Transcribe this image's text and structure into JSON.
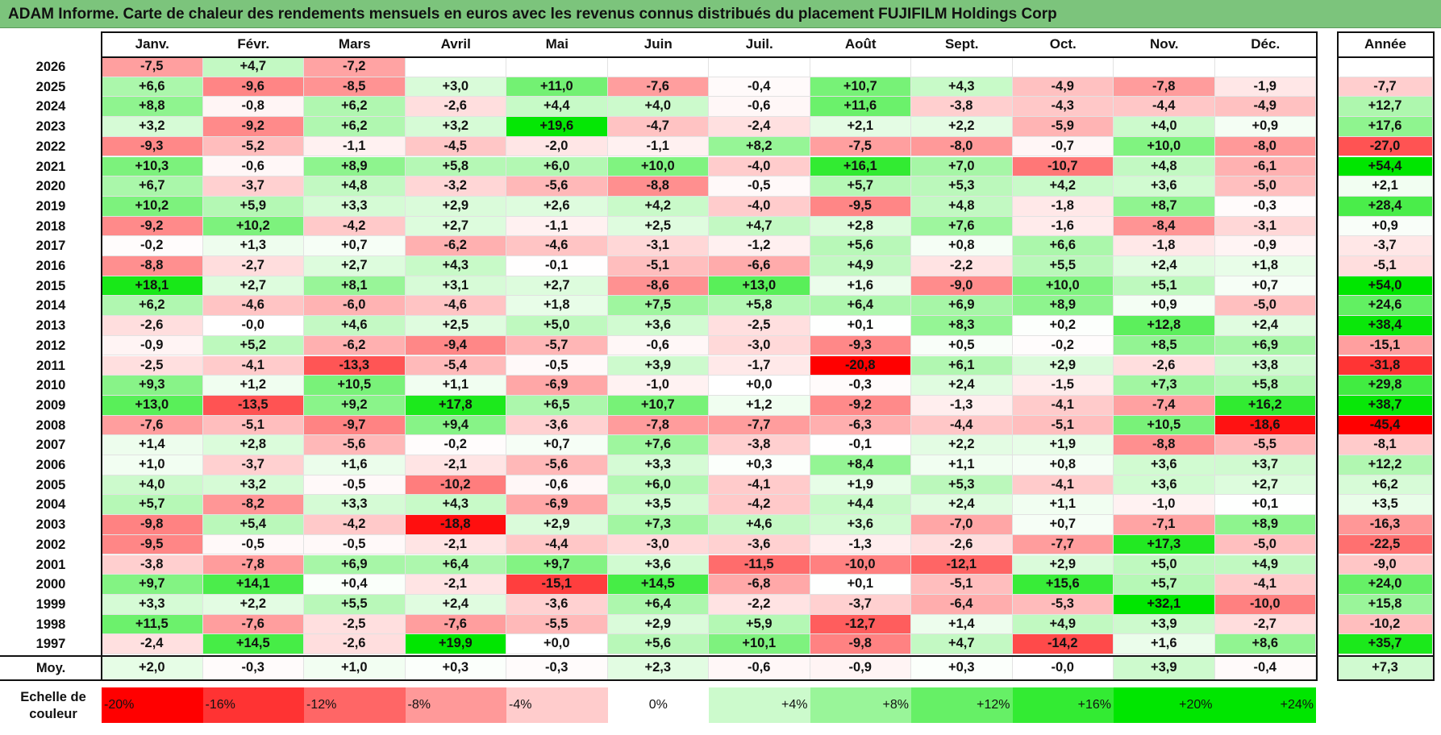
{
  "title": "ADAM Informe. Carte de chaleur des rendements mensuels en euros avec les revenus connus distribués du placement FUJIFILM Holdings Corp",
  "chart_data": {
    "type": "heatmap",
    "title": "ADAM Informe. Carte de chaleur des rendements mensuels en euros avec les revenus connus distribués du placement FUJIFILM Holdings Corp",
    "months": [
      "Janv.",
      "Févr.",
      "Mars",
      "Avril",
      "Mai",
      "Juin",
      "Juil.",
      "Août",
      "Sept.",
      "Oct.",
      "Nov.",
      "Déc."
    ],
    "year_header": "Année",
    "rows": [
      {
        "year": "2026",
        "values": [
          "-7,5",
          "+4,7",
          "-7,2",
          "",
          "",
          "",
          "",
          "",
          "",
          "",
          "",
          ""
        ],
        "annual": ""
      },
      {
        "year": "2025",
        "values": [
          "+6,6",
          "-9,6",
          "-8,5",
          "+3,0",
          "+11,0",
          "-7,6",
          "-0,4",
          "+10,7",
          "+4,3",
          "-4,9",
          "-7,8",
          "-1,9"
        ],
        "annual": "-7,7"
      },
      {
        "year": "2024",
        "values": [
          "+8,8",
          "-0,8",
          "+6,2",
          "-2,6",
          "+4,4",
          "+4,0",
          "-0,6",
          "+11,6",
          "-3,8",
          "-4,3",
          "-4,4",
          "-4,9"
        ],
        "annual": "+12,7"
      },
      {
        "year": "2023",
        "values": [
          "+3,2",
          "-9,2",
          "+6,2",
          "+3,2",
          "+19,6",
          "-4,7",
          "-2,4",
          "+2,1",
          "+2,2",
          "-5,9",
          "+4,0",
          "+0,9"
        ],
        "annual": "+17,6"
      },
      {
        "year": "2022",
        "values": [
          "-9,3",
          "-5,2",
          "-1,1",
          "-4,5",
          "-2,0",
          "-1,1",
          "+8,2",
          "-7,5",
          "-8,0",
          "-0,7",
          "+10,0",
          "-8,0"
        ],
        "annual": "-27,0"
      },
      {
        "year": "2021",
        "values": [
          "+10,3",
          "-0,6",
          "+8,9",
          "+5,8",
          "+6,0",
          "+10,0",
          "-4,0",
          "+16,1",
          "+7,0",
          "-10,7",
          "+4,8",
          "-6,1"
        ],
        "annual": "+54,4"
      },
      {
        "year": "2020",
        "values": [
          "+6,7",
          "-3,7",
          "+4,8",
          "-3,2",
          "-5,6",
          "-8,8",
          "-0,5",
          "+5,7",
          "+5,3",
          "+4,2",
          "+3,6",
          "-5,0"
        ],
        "annual": "+2,1"
      },
      {
        "year": "2019",
        "values": [
          "+10,2",
          "+5,9",
          "+3,3",
          "+2,9",
          "+2,6",
          "+4,2",
          "-4,0",
          "-9,5",
          "+4,8",
          "-1,8",
          "+8,7",
          "-0,3"
        ],
        "annual": "+28,4"
      },
      {
        "year": "2018",
        "values": [
          "-9,2",
          "+10,2",
          "-4,2",
          "+2,7",
          "-1,1",
          "+2,5",
          "+4,7",
          "+2,8",
          "+7,6",
          "-1,6",
          "-8,4",
          "-3,1"
        ],
        "annual": "+0,9"
      },
      {
        "year": "2017",
        "values": [
          "-0,2",
          "+1,3",
          "+0,7",
          "-6,2",
          "-4,6",
          "-3,1",
          "-1,2",
          "+5,6",
          "+0,8",
          "+6,6",
          "-1,8",
          "-0,9"
        ],
        "annual": "-3,7"
      },
      {
        "year": "2016",
        "values": [
          "-8,8",
          "-2,7",
          "+2,7",
          "+4,3",
          "-0,1",
          "-5,1",
          "-6,6",
          "+4,9",
          "-2,2",
          "+5,5",
          "+2,4",
          "+1,8"
        ],
        "annual": "-5,1"
      },
      {
        "year": "2015",
        "values": [
          "+18,1",
          "+2,7",
          "+8,1",
          "+3,1",
          "+2,7",
          "-8,6",
          "+13,0",
          "+1,6",
          "-9,0",
          "+10,0",
          "+5,1",
          "+0,7"
        ],
        "annual": "+54,0"
      },
      {
        "year": "2014",
        "values": [
          "+6,2",
          "-4,6",
          "-6,0",
          "-4,6",
          "+1,8",
          "+7,5",
          "+5,8",
          "+6,4",
          "+6,9",
          "+8,9",
          "+0,9",
          "-5,0"
        ],
        "annual": "+24,6"
      },
      {
        "year": "2013",
        "values": [
          "-2,6",
          "-0,0",
          "+4,6",
          "+2,5",
          "+5,0",
          "+3,6",
          "-2,5",
          "+0,1",
          "+8,3",
          "+0,2",
          "+12,8",
          "+2,4"
        ],
        "annual": "+38,4"
      },
      {
        "year": "2012",
        "values": [
          "-0,9",
          "+5,2",
          "-6,2",
          "-9,4",
          "-5,7",
          "-0,6",
          "-3,0",
          "-9,3",
          "+0,5",
          "-0,2",
          "+8,5",
          "+6,9"
        ],
        "annual": "-15,1"
      },
      {
        "year": "2011",
        "values": [
          "-2,5",
          "-4,1",
          "-13,3",
          "-5,4",
          "-0,5",
          "+3,9",
          "-1,7",
          "-20,8",
          "+6,1",
          "+2,9",
          "-2,6",
          "+3,8"
        ],
        "annual": "-31,8"
      },
      {
        "year": "2010",
        "values": [
          "+9,3",
          "+1,2",
          "+10,5",
          "+1,1",
          "-6,9",
          "-1,0",
          "+0,0",
          "-0,3",
          "+2,4",
          "-1,5",
          "+7,3",
          "+5,8"
        ],
        "annual": "+29,8"
      },
      {
        "year": "2009",
        "values": [
          "+13,0",
          "-13,5",
          "+9,2",
          "+17,8",
          "+6,5",
          "+10,7",
          "+1,2",
          "-9,2",
          "-1,3",
          "-4,1",
          "-7,4",
          "+16,2"
        ],
        "annual": "+38,7"
      },
      {
        "year": "2008",
        "values": [
          "-7,6",
          "-5,1",
          "-9,7",
          "+9,4",
          "-3,6",
          "-7,8",
          "-7,7",
          "-6,3",
          "-4,4",
          "-5,1",
          "+10,5",
          "-18,6"
        ],
        "annual": "-45,4"
      },
      {
        "year": "2007",
        "values": [
          "+1,4",
          "+2,8",
          "-5,6",
          "-0,2",
          "+0,7",
          "+7,6",
          "-3,8",
          "-0,1",
          "+2,2",
          "+1,9",
          "-8,8",
          "-5,5"
        ],
        "annual": "-8,1"
      },
      {
        "year": "2006",
        "values": [
          "+1,0",
          "-3,7",
          "+1,6",
          "-2,1",
          "-5,6",
          "+3,3",
          "+0,3",
          "+8,4",
          "+1,1",
          "+0,8",
          "+3,6",
          "+3,7"
        ],
        "annual": "+12,2"
      },
      {
        "year": "2005",
        "values": [
          "+4,0",
          "+3,2",
          "-0,5",
          "-10,2",
          "-0,6",
          "+6,0",
          "-4,1",
          "+1,9",
          "+5,3",
          "-4,1",
          "+3,6",
          "+2,7"
        ],
        "annual": "+6,2"
      },
      {
        "year": "2004",
        "values": [
          "+5,7",
          "-8,2",
          "+3,3",
          "+4,3",
          "-6,9",
          "+3,5",
          "-4,2",
          "+4,4",
          "+2,4",
          "+1,1",
          "-1,0",
          "+0,1"
        ],
        "annual": "+3,5"
      },
      {
        "year": "2003",
        "values": [
          "-9,8",
          "+5,4",
          "-4,2",
          "-18,8",
          "+2,9",
          "+7,3",
          "+4,6",
          "+3,6",
          "-7,0",
          "+0,7",
          "-7,1",
          "+8,9"
        ],
        "annual": "-16,3"
      },
      {
        "year": "2002",
        "values": [
          "-9,5",
          "-0,5",
          "-0,5",
          "-2,1",
          "-4,4",
          "-3,0",
          "-3,6",
          "-1,3",
          "-2,6",
          "-7,7",
          "+17,3",
          "-5,0"
        ],
        "annual": "-22,5"
      },
      {
        "year": "2001",
        "values": [
          "-3,8",
          "-7,8",
          "+6,9",
          "+6,4",
          "+9,7",
          "+3,6",
          "-11,5",
          "-10,0",
          "-12,1",
          "+2,9",
          "+5,0",
          "+4,9"
        ],
        "annual": "-9,0"
      },
      {
        "year": "2000",
        "values": [
          "+9,7",
          "+14,1",
          "+0,4",
          "-2,1",
          "-15,1",
          "+14,5",
          "-6,8",
          "+0,1",
          "-5,1",
          "+15,6",
          "+5,7",
          "-4,1"
        ],
        "annual": "+24,0"
      },
      {
        "year": "1999",
        "values": [
          "+3,3",
          "+2,2",
          "+5,5",
          "+2,4",
          "-3,6",
          "+6,4",
          "-2,2",
          "-3,7",
          "-6,4",
          "-5,3",
          "+32,1",
          "-10,0"
        ],
        "annual": "+15,8"
      },
      {
        "year": "1998",
        "values": [
          "+11,5",
          "-7,6",
          "-2,5",
          "-7,6",
          "-5,5",
          "+2,9",
          "+5,9",
          "-12,7",
          "+1,4",
          "+4,9",
          "+3,9",
          "-2,7"
        ],
        "annual": "-10,2"
      },
      {
        "year": "1997",
        "values": [
          "-2,4",
          "+14,5",
          "-2,6",
          "+19,9",
          "+0,0",
          "+5,6",
          "+10,1",
          "-9,8",
          "+4,7",
          "-14,2",
          "+1,6",
          "+8,6"
        ],
        "annual": "+35,7"
      }
    ],
    "average": {
      "label": "Moy.",
      "values": [
        "+2,0",
        "-0,3",
        "+1,0",
        "+0,3",
        "-0,3",
        "+2,3",
        "-0,6",
        "-0,9",
        "+0,3",
        "-0,0",
        "+3,9",
        "-0,4"
      ],
      "annual": "+7,3"
    },
    "scale": {
      "label": "Echelle de couleur",
      "steps": [
        "-20%",
        "-16%",
        "-12%",
        "-8%",
        "-4%",
        "0%",
        "+4%",
        "+8%",
        "+12%",
        "+16%",
        "+20%",
        "+24%"
      ],
      "step_values": [
        -20,
        -16,
        -12,
        -8,
        -4,
        0,
        4,
        8,
        12,
        16,
        20,
        24
      ]
    },
    "colors": {
      "neg_strong": "#ff0000",
      "pos_strong": "#00e600",
      "neutral": "#ffffff"
    }
  }
}
